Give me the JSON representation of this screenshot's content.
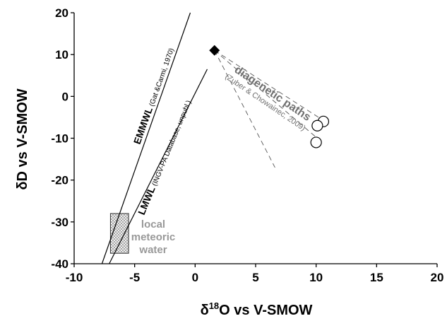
{
  "chart_data": {
    "type": "scatter",
    "xlabel_prefix": "δ",
    "xlabel_sup": "18",
    "xlabel_rest": "O vs V-SMOW",
    "ylabel": "δD vs V-SMOW",
    "xlim": [
      -10,
      20
    ],
    "ylim": [
      -40,
      20
    ],
    "xticks": [
      -10,
      -5,
      0,
      5,
      10,
      15,
      20
    ],
    "yticks": [
      20,
      10,
      0,
      -10,
      -20,
      -30,
      -40
    ],
    "grid": false,
    "source_point": {
      "x": 1.6,
      "y": 11,
      "marker": "filled-diamond"
    },
    "sample_points": [
      {
        "x": 10.6,
        "y": -6,
        "marker": "open-circle"
      },
      {
        "x": 10.1,
        "y": -7,
        "marker": "open-circle"
      },
      {
        "x": 10.0,
        "y": -11,
        "marker": "open-circle"
      }
    ],
    "lines": {
      "emmwl": {
        "label_main": "EMMWL",
        "label_ref": " (Gat &Carmi, 1970)",
        "x": [
          -7.7,
          -0.4
        ],
        "y": [
          -40,
          20
        ]
      },
      "lmwl": {
        "label_main": "LMWL",
        "label_ref": " (INGV-PA Database, unpubl.)",
        "x": [
          -7.1,
          1.0
        ],
        "y": [
          -40,
          6.5
        ]
      }
    },
    "diagenetic_paths": {
      "label_main": "diagenetic paths",
      "label_ref": "(Zuber & Chowainec, 2009)",
      "ends": [
        {
          "x": 10.2,
          "y": -5
        },
        {
          "x": 10.3,
          "y": -10.5
        },
        {
          "x": 6.6,
          "y": -17
        }
      ]
    },
    "local_meteoric_water": {
      "label_lines": [
        "local",
        "meteoric",
        "water"
      ],
      "x": [
        -7.0,
        -5.5
      ],
      "y": [
        -37.5,
        -28
      ]
    }
  }
}
